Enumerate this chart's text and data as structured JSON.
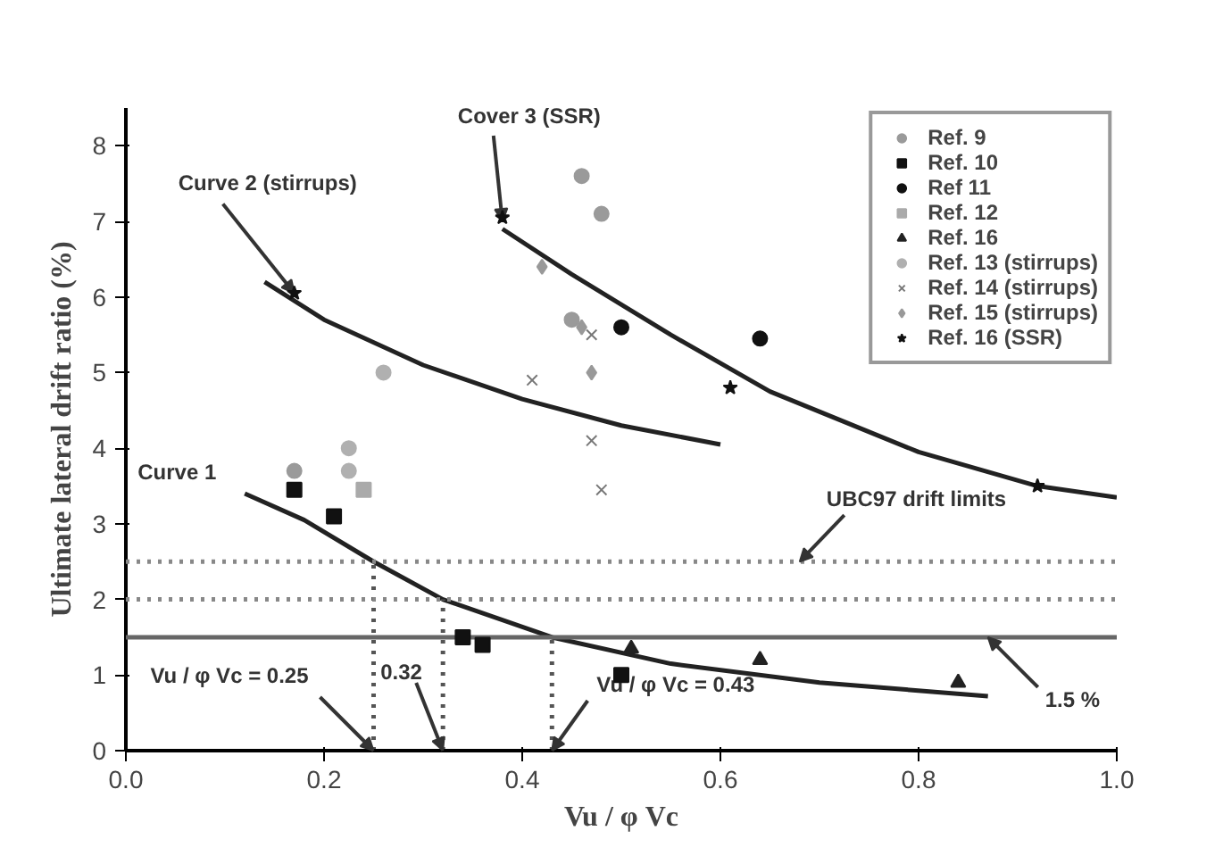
{
  "chart_data": {
    "type": "scatter",
    "ylabel": "Ultimate lateral drift ratio (%)",
    "xlabel": "Vu / φ Vc",
    "xlim": [
      0,
      1.0
    ],
    "ylim": [
      0,
      8.5
    ],
    "xticks": [
      {
        "value": 0,
        "label": "0.0"
      },
      {
        "value": 0.2,
        "label": "0.2"
      },
      {
        "value": 0.4,
        "label": "0.4"
      },
      {
        "value": 0.6,
        "label": "0.6"
      },
      {
        "value": 0.8,
        "label": "0.8"
      },
      {
        "value": 1.0,
        "label": "1.0"
      }
    ],
    "yticks": [
      0,
      1,
      2,
      3,
      4,
      5,
      6,
      7,
      8
    ],
    "grid": false,
    "legend": "top right",
    "series": [
      {
        "name": "Ref. 9",
        "color": "#9a9a9a",
        "marker": "circle",
        "x": [
          0.17,
          0.46,
          0.48,
          0.45
        ],
        "values": [
          3.7,
          7.6,
          7.1,
          5.7
        ]
      },
      {
        "name": "Ref. 10",
        "color": "#111111",
        "marker": "square",
        "x": [
          0.17,
          0.21,
          0.34,
          0.36,
          0.5
        ],
        "values": [
          3.45,
          3.1,
          1.5,
          1.4,
          1.0
        ]
      },
      {
        "name": "Ref 11",
        "color": "#111111",
        "marker": "circle",
        "x": [
          0.5,
          0.64
        ],
        "values": [
          5.6,
          5.45
        ]
      },
      {
        "name": "Ref. 12",
        "color": "#aaaaaa",
        "marker": "square",
        "x": [
          0.24
        ],
        "values": [
          3.45
        ]
      },
      {
        "name": "Ref. 16",
        "color": "#222222",
        "marker": "triangle",
        "x": [
          0.51,
          0.64,
          0.84
        ],
        "values": [
          1.35,
          1.2,
          0.9
        ]
      },
      {
        "name": "Ref. 13 (stirrups)",
        "color": "#b0b0b0",
        "marker": "circle",
        "x": [
          0.26,
          0.225,
          0.225
        ],
        "values": [
          5.0,
          4.0,
          3.7
        ]
      },
      {
        "name": "Ref. 14 (stirrups)",
        "color": "#777777",
        "marker": "cross",
        "x": [
          0.41,
          0.47,
          0.48,
          0.47
        ],
        "values": [
          4.9,
          4.1,
          3.45,
          5.5
        ]
      },
      {
        "name": "Ref. 15 (stirrups)",
        "color": "#999999",
        "marker": "diamond",
        "x": [
          0.42,
          0.46,
          0.47
        ],
        "values": [
          6.4,
          5.6,
          5.0
        ]
      },
      {
        "name": "Ref. 16 (SSR)",
        "color": "#111111",
        "marker": "star",
        "x": [
          0.17,
          0.38,
          0.61,
          0.92
        ],
        "values": [
          6.05,
          7.05,
          4.8,
          3.5
        ]
      },
      {
        "type": "line",
        "color": "#222222",
        "line_style": "solid",
        "x": [
          0.12,
          0.18,
          0.25,
          0.32,
          0.43,
          0.55,
          0.7,
          0.87
        ],
        "values": [
          3.4,
          3.05,
          2.5,
          2.0,
          1.5,
          1.15,
          0.9,
          0.72
        ]
      },
      {
        "type": "line",
        "color": "#222222",
        "line_style": "solid",
        "x": [
          0.14,
          0.2,
          0.3,
          0.4,
          0.5,
          0.6
        ],
        "values": [
          6.2,
          5.7,
          5.1,
          4.65,
          4.3,
          4.05
        ]
      },
      {
        "type": "line",
        "color": "#222222",
        "line_style": "solid",
        "x": [
          0.38,
          0.45,
          0.55,
          0.65,
          0.8,
          0.92,
          1.0
        ],
        "values": [
          6.9,
          6.3,
          5.5,
          4.75,
          3.95,
          3.5,
          3.35
        ]
      },
      {
        "type": "line",
        "color": "#555555",
        "line_style": "dotted",
        "x": [
          0.25,
          0.25
        ],
        "values": [
          0,
          2.5
        ]
      },
      {
        "type": "line",
        "color": "#555555",
        "line_style": "dotted",
        "x": [
          0.32,
          0.32
        ],
        "values": [
          0,
          2.0
        ]
      },
      {
        "type": "line",
        "color": "#555555",
        "line_style": "dotted",
        "x": [
          0.43,
          0.43
        ],
        "values": [
          0,
          1.5
        ]
      }
    ],
    "ref_lines": [
      {
        "axis": "y",
        "value": 2.5,
        "color": "#888888",
        "line_style": "dotted"
      },
      {
        "axis": "y",
        "value": 2.0,
        "color": "#888888",
        "line_style": "dotted"
      },
      {
        "axis": "y",
        "value": 1.5,
        "color": "#666666",
        "line_style": "solid"
      }
    ],
    "annotations": [
      {
        "text": "Curve 1",
        "x": 0.12,
        "y": 3.4
      },
      {
        "text": "Curve 2 (stirrups)",
        "x": 0.17,
        "y": 6.05
      },
      {
        "text": "Cover 3 (SSR)",
        "x": 0.38,
        "y": 7.0
      },
      {
        "text": "UBC97 drift limits",
        "x": 0.68,
        "y": 2.5
      },
      {
        "text": "1.5 %",
        "x": 0.87,
        "y": 1.5
      },
      {
        "text": "Vu / φ Vc = 0.25",
        "x": 0.25,
        "y": 0
      },
      {
        "text": "0.32",
        "x": 0.32,
        "y": 0
      },
      {
        "text": "Vu / φ Vc = 0.43",
        "x": 0.43,
        "y": 0
      }
    ]
  }
}
